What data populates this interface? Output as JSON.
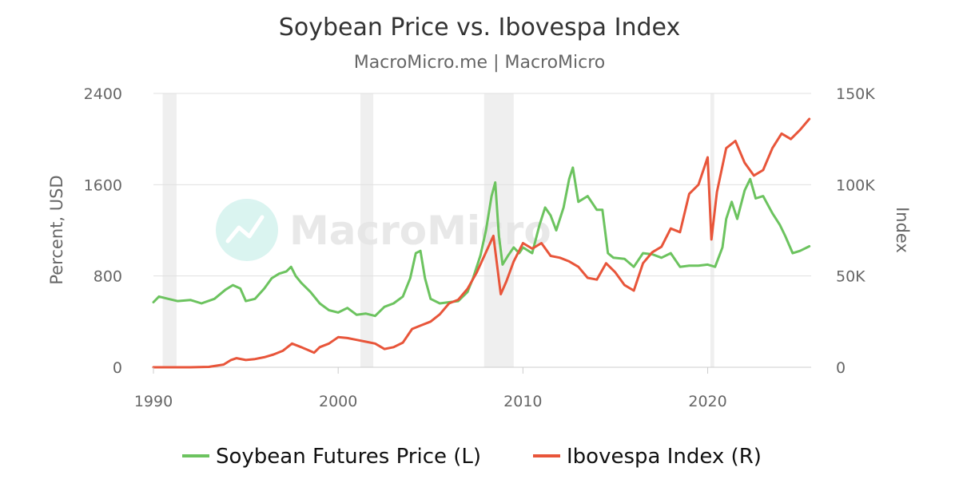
{
  "colors": {
    "soybean": "#6cc35f",
    "ibovespa": "#e8553a",
    "grid": "#e0e0e0",
    "recession": "#efefef"
  },
  "watermark": {
    "text": "MacroMicro",
    "icon": "chart-line-icon"
  },
  "chart_data": {
    "type": "line",
    "title": "Soybean Price vs. Ibovespa Index",
    "subtitle": "MacroMicro.me | MacroMicro",
    "xlabel": "",
    "ylabel_left": "Percent, USD",
    "ylabel_right": "Index",
    "xlim": [
      1990,
      2025.6
    ],
    "ylim_left": [
      0,
      2400
    ],
    "ylim_right": [
      0,
      150000
    ],
    "x_ticks": [
      1990,
      2000,
      2010,
      2020
    ],
    "left_ticks": [
      {
        "v": 0,
        "label": "0"
      },
      {
        "v": 800,
        "label": "800"
      },
      {
        "v": 1600,
        "label": "1600"
      },
      {
        "v": 2400,
        "label": "2400"
      }
    ],
    "right_ticks": [
      {
        "v": 0,
        "label": "0"
      },
      {
        "v": 50000,
        "label": "50K"
      },
      {
        "v": 100000,
        "label": "100K"
      },
      {
        "v": 150000,
        "label": "150K"
      }
    ],
    "grid": true,
    "legend_position": "bottom-center",
    "recession_bands": [
      [
        1990.5,
        1991.25
      ],
      [
        2001.2,
        2001.9
      ],
      [
        2007.9,
        2009.5
      ],
      [
        2020.15,
        2020.35
      ]
    ],
    "series": [
      {
        "name": "Soybean Futures Price (L)",
        "axis": "left",
        "x": [
          1990,
          1990.3,
          1990.8,
          1991.3,
          1992,
          1992.6,
          1993.3,
          1993.9,
          1994.3,
          1994.7,
          1995,
          1995.5,
          1996,
          1996.4,
          1996.8,
          1997.2,
          1997.45,
          1997.7,
          1998,
          1998.5,
          1999,
          1999.5,
          2000,
          2000.5,
          2001,
          2001.5,
          2002,
          2002.5,
          2003,
          2003.5,
          2003.9,
          2004.2,
          2004.45,
          2004.7,
          2005,
          2005.5,
          2006,
          2006.5,
          2007,
          2007.3,
          2007.7,
          2008,
          2008.3,
          2008.5,
          2008.7,
          2008.9,
          2009.2,
          2009.5,
          2009.8,
          2010,
          2010.5,
          2010.9,
          2011.2,
          2011.5,
          2011.8,
          2012.2,
          2012.5,
          2012.7,
          2013,
          2013.5,
          2014,
          2014.3,
          2014.6,
          2014.9,
          2015.5,
          2016,
          2016.5,
          2017,
          2017.5,
          2018,
          2018.5,
          2019,
          2019.5,
          2020,
          2020.4,
          2020.8,
          2021,
          2021.3,
          2021.6,
          2022,
          2022.3,
          2022.6,
          2023,
          2023.5,
          2023.9,
          2024.2,
          2024.6,
          2025,
          2025.5
        ],
        "values": [
          570,
          620,
          600,
          580,
          590,
          560,
          600,
          680,
          720,
          690,
          580,
          600,
          690,
          780,
          820,
          840,
          880,
          800,
          740,
          660,
          560,
          500,
          480,
          520,
          460,
          470,
          450,
          530,
          560,
          620,
          780,
          1000,
          1020,
          780,
          600,
          560,
          570,
          580,
          660,
          780,
          980,
          1200,
          1500,
          1620,
          1150,
          900,
          980,
          1050,
          1000,
          1050,
          1000,
          1250,
          1400,
          1330,
          1200,
          1400,
          1650,
          1750,
          1450,
          1500,
          1380,
          1380,
          1000,
          960,
          950,
          880,
          1000,
          990,
          960,
          1000,
          880,
          890,
          890,
          900,
          880,
          1050,
          1300,
          1450,
          1300,
          1550,
          1650,
          1480,
          1500,
          1350,
          1250,
          1150,
          1000,
          1020,
          1060
        ]
      },
      {
        "name": "Ibovespa Index (R)",
        "axis": "right",
        "x": [
          1990,
          1991,
          1992,
          1993,
          1993.8,
          1994.2,
          1994.5,
          1995,
          1995.5,
          1996,
          1996.5,
          1997,
          1997.5,
          1998,
          1998.7,
          1999,
          1999.5,
          2000,
          2000.5,
          2001,
          2001.5,
          2002,
          2002.5,
          2003,
          2003.5,
          2004,
          2004.5,
          2005,
          2005.5,
          2006,
          2006.5,
          2007,
          2007.5,
          2008,
          2008.4,
          2008.8,
          2009.1,
          2009.5,
          2010,
          2010.5,
          2011,
          2011.5,
          2012,
          2012.5,
          2013,
          2013.5,
          2014,
          2014.5,
          2015,
          2015.5,
          2016,
          2016.5,
          2017,
          2017.5,
          2018,
          2018.5,
          2019,
          2019.5,
          2020,
          2020.2,
          2020.5,
          2021,
          2021.5,
          2022,
          2022.5,
          2023,
          2023.5,
          2024,
          2024.5,
          2025,
          2025.5
        ],
        "values": [
          0,
          0,
          0,
          200,
          1500,
          4000,
          5000,
          4000,
          4500,
          5500,
          7000,
          9000,
          13000,
          11000,
          8000,
          11000,
          13000,
          16500,
          16000,
          15000,
          14000,
          13000,
          10000,
          11000,
          13500,
          21000,
          23000,
          25000,
          29000,
          35000,
          37000,
          43000,
          52000,
          63000,
          72000,
          40000,
          47000,
          58000,
          68000,
          65000,
          68000,
          61000,
          60000,
          58000,
          55000,
          49000,
          48000,
          57000,
          52000,
          45000,
          42000,
          57000,
          63000,
          66000,
          76000,
          74000,
          95000,
          100000,
          115000,
          70000,
          96000,
          120000,
          124000,
          112000,
          105000,
          108000,
          120000,
          128000,
          125000,
          130000,
          136000
        ]
      }
    ]
  }
}
